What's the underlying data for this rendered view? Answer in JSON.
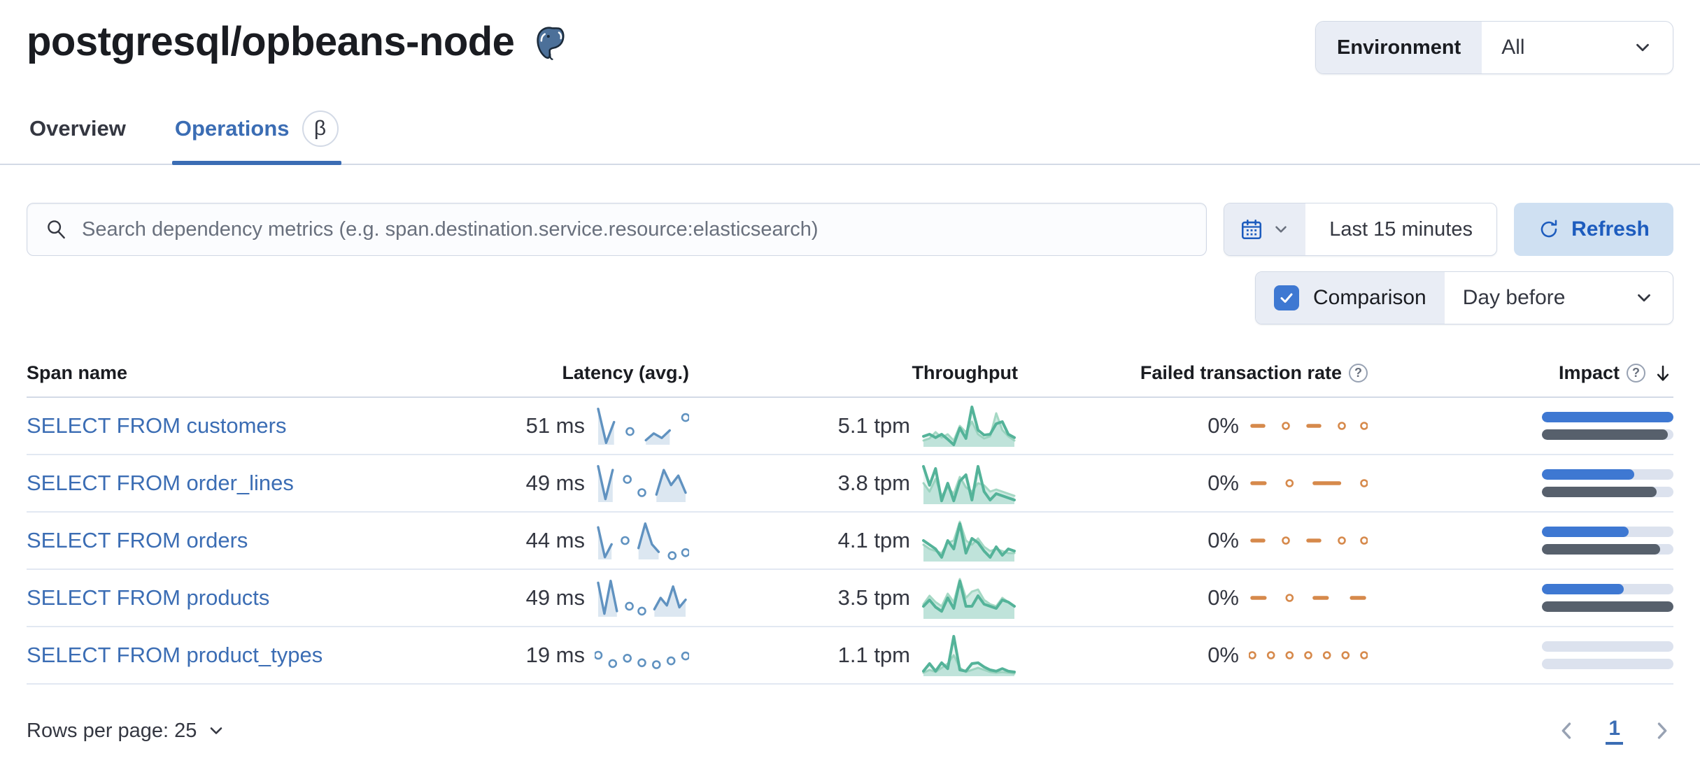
{
  "page": {
    "title": "postgresql/opbeans-node",
    "logo_icon": "postgresql-elephant"
  },
  "environment": {
    "label": "Environment",
    "value": "All"
  },
  "tabs": {
    "overview": "Overview",
    "operations": "Operations",
    "beta_badge": "β"
  },
  "toolbar": {
    "search_placeholder": "Search dependency metrics (e.g. span.destination.service.resource:elasticsearch)",
    "time_range": "Last 15 minutes",
    "refresh_label": "Refresh",
    "comparison": {
      "label": "Comparison",
      "checked": true,
      "value": "Day before"
    }
  },
  "table": {
    "columns": {
      "span_name": "Span name",
      "latency": "Latency (avg.)",
      "throughput": "Throughput",
      "failed_rate": "Failed transaction rate",
      "impact": "Impact"
    },
    "rows": [
      {
        "name": "SELECT FROM customers",
        "latency": "51 ms",
        "throughput": "5.1 tpm",
        "failed_rate": "0%",
        "impact": {
          "current": 100,
          "previous": 96
        },
        "spark": {
          "latency": [
            0.95,
            0.05,
            0.6,
            null,
            0.35,
            null,
            0.12,
            0.3,
            0.18,
            0.38,
            null,
            0.72
          ],
          "tp": [
            0.25,
            0.3,
            0.22,
            0.3,
            0.18,
            0.05,
            0.45,
            0.2,
            0.95,
            0.4,
            0.28,
            0.3,
            0.55,
            0.6,
            0.3,
            0.22
          ],
          "tp_prev": [
            0.15,
            0.2,
            0.35,
            0.22,
            0.3,
            0.15,
            0.5,
            0.35,
            0.6,
            0.3,
            0.2,
            0.25,
            0.8,
            0.4,
            0.25,
            0.15
          ],
          "ftr": [
            0.5,
            0.5,
            null,
            0.5,
            null,
            0.5,
            0.5,
            null,
            0.5,
            null,
            0.5
          ]
        }
      },
      {
        "name": "SELECT FROM order_lines",
        "latency": "49 ms",
        "throughput": "3.8 tpm",
        "failed_rate": "0%",
        "impact": {
          "current": 70,
          "previous": 87
        },
        "spark": {
          "latency": [
            0.95,
            0.08,
            0.85,
            null,
            0.6,
            null,
            0.25,
            null,
            0.2,
            0.85,
            0.45,
            0.7,
            0.25
          ],
          "tp": [
            0.9,
            0.45,
            0.85,
            0.08,
            0.5,
            0.08,
            0.55,
            0.7,
            0.1,
            0.9,
            0.3,
            0.1,
            0.25,
            0.2,
            0.15,
            0.1
          ],
          "tp_prev": [
            0.5,
            0.3,
            0.6,
            0.2,
            0.4,
            0.25,
            0.65,
            0.4,
            0.3,
            0.5,
            0.45,
            0.3,
            0.35,
            0.3,
            0.25,
            0.2
          ],
          "ftr": [
            0.5,
            0.5,
            null,
            0.5,
            null,
            0.5,
            0.5,
            0.5,
            null,
            0.5
          ]
        }
      },
      {
        "name": "SELECT FROM orders",
        "latency": "44 ms",
        "throughput": "4.1 tpm",
        "failed_rate": "0%",
        "impact": {
          "current": 66,
          "previous": 90
        },
        "spark": {
          "latency": [
            0.85,
            0.06,
            0.4,
            null,
            0.5,
            null,
            0.3,
            0.95,
            0.4,
            0.2,
            null,
            0.1,
            null,
            0.18
          ],
          "tp": [
            0.5,
            0.4,
            0.3,
            0.1,
            0.5,
            0.3,
            0.9,
            0.2,
            0.55,
            0.45,
            0.25,
            0.1,
            0.35,
            0.15,
            0.3,
            0.25
          ],
          "tp_prev": [
            0.4,
            0.3,
            0.25,
            0.2,
            0.45,
            0.5,
            0.95,
            0.5,
            0.4,
            0.55,
            0.35,
            0.25,
            0.3,
            0.25,
            0.2,
            0.2
          ],
          "ftr": [
            0.5,
            0.5,
            null,
            0.5,
            null,
            0.5,
            0.5,
            null,
            0.5,
            null,
            0.5
          ]
        }
      },
      {
        "name": "SELECT FROM products",
        "latency": "49 ms",
        "throughput": "3.5 tpm",
        "failed_rate": "0%",
        "impact": {
          "current": 62,
          "previous": 100
        },
        "spark": {
          "latency": [
            0.9,
            0.08,
            0.95,
            0.15,
            null,
            0.28,
            null,
            0.15,
            null,
            0.2,
            0.5,
            0.3,
            0.8,
            0.25,
            0.45
          ],
          "tp": [
            0.3,
            0.45,
            0.28,
            0.18,
            0.5,
            0.25,
            0.9,
            0.3,
            0.3,
            0.55,
            0.35,
            0.3,
            0.25,
            0.45,
            0.4,
            0.3
          ],
          "tp_prev": [
            0.35,
            0.55,
            0.4,
            0.3,
            0.6,
            0.4,
            0.95,
            0.5,
            0.65,
            0.7,
            0.45,
            0.35,
            0.3,
            0.5,
            0.4,
            0.3
          ],
          "ftr": [
            0.5,
            0.5,
            null,
            0.5,
            null,
            0.5,
            0.5,
            null,
            0.5,
            0.5
          ]
        }
      },
      {
        "name": "SELECT FROM product_types",
        "latency": "19 ms",
        "throughput": "1.1 tpm",
        "failed_rate": "0%",
        "impact": {
          "current": 0,
          "previous": 0
        },
        "spark": {
          "latency": [
            0.5,
            null,
            0.28,
            null,
            0.42,
            null,
            0.3,
            null,
            0.25,
            null,
            0.35,
            null,
            0.48
          ],
          "tp": [
            0.12,
            0.3,
            0.12,
            0.32,
            0.18,
            0.95,
            0.15,
            0.12,
            0.3,
            0.32,
            0.22,
            0.15,
            0.12,
            0.18,
            0.12,
            0.1
          ],
          "tp_prev": [
            0.08,
            0.15,
            0.1,
            0.2,
            0.3,
            0.5,
            0.2,
            0.1,
            0.15,
            0.2,
            0.15,
            0.1,
            0.08,
            0.1,
            0.08,
            0.06
          ],
          "ftr": [
            0.5,
            null,
            0.5,
            null,
            0.5,
            null,
            0.5,
            null,
            0.5,
            null,
            0.5,
            null,
            0.5
          ]
        }
      }
    ]
  },
  "footer": {
    "rows_per_page": "Rows per page: 25",
    "page": "1"
  },
  "colors": {
    "link": "#3b6db4",
    "bar_blue": "#3e78d2",
    "bar_grey": "#57606c",
    "bar_track": "#dce2ee",
    "spark_blue": "#6092c0",
    "spark_blue_area": "rgba(96,146,192,0.22)",
    "green": "#54b399",
    "green_light": "#a5d8c4",
    "green_area": "rgba(84,179,153,0.28)",
    "green_area_light": "rgba(84,179,153,0.12)",
    "orange": "#d6894b"
  }
}
